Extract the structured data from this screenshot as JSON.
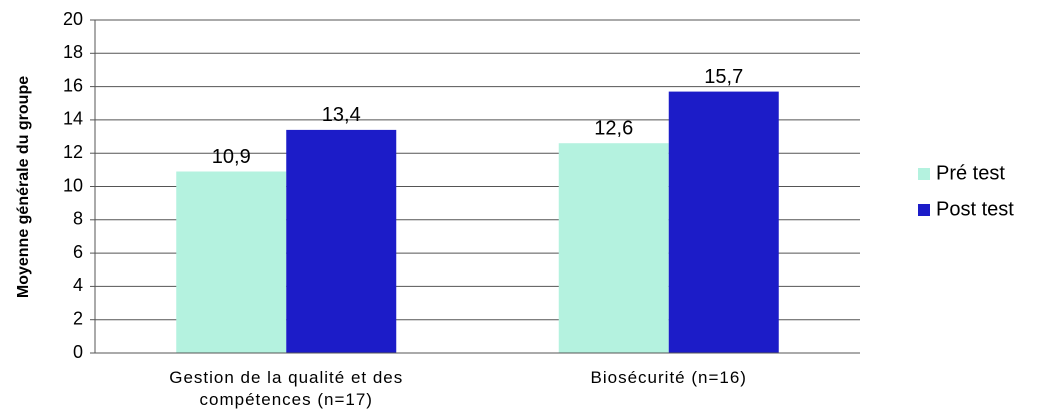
{
  "chart_data": {
    "type": "bar",
    "y_label": "Moyenne générale du groupe",
    "categories": [
      "Gestion de la qualité et des compétences (n=17)",
      "Biosécurité (n=16)"
    ],
    "series": [
      {
        "name": "Pré test",
        "color": "#b4f2df",
        "values": [
          10.9,
          12.6
        ],
        "value_labels": [
          "10,9",
          "12,6"
        ]
      },
      {
        "name": "Post test",
        "color": "#1c1cc8",
        "values": [
          13.4,
          15.7
        ],
        "value_labels": [
          "13,4",
          "15,7"
        ]
      }
    ],
    "ylim": [
      0,
      20
    ],
    "yticks": [
      0,
      2,
      4,
      6,
      8,
      10,
      12,
      14,
      16,
      18,
      20
    ],
    "grid": true,
    "legend": "right"
  }
}
